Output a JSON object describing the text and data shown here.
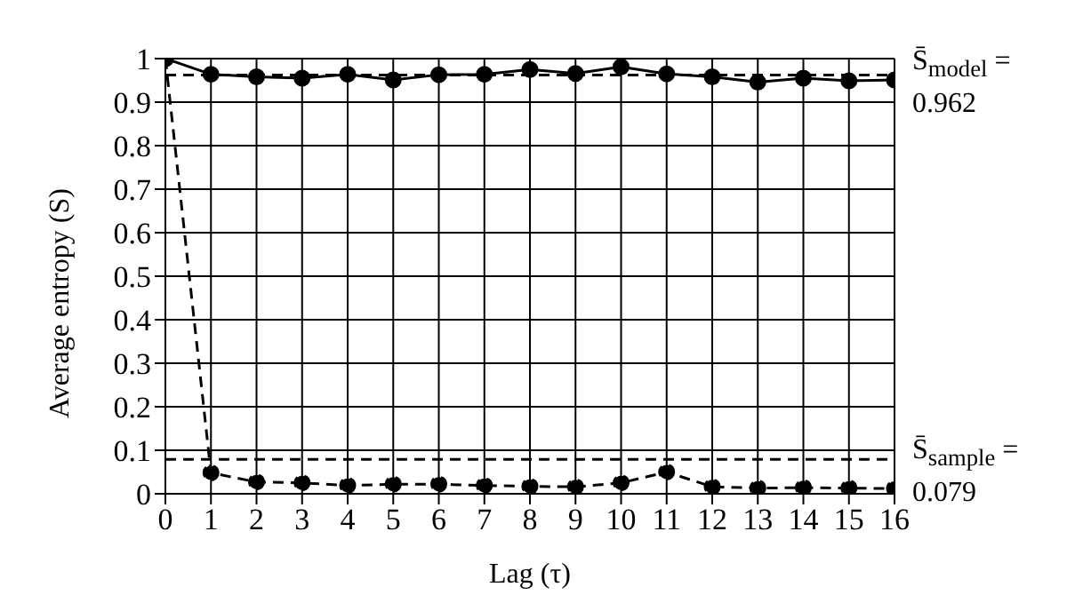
{
  "chart_data": {
    "type": "line",
    "xlabel": "Lag (τ)",
    "ylabel": "Average entropy (S)",
    "x": [
      0,
      1,
      2,
      3,
      4,
      5,
      6,
      7,
      8,
      9,
      10,
      11,
      12,
      13,
      14,
      15,
      16
    ],
    "series": [
      {
        "color": "#000000",
        "line_style": "solid",
        "values": [
          1.0,
          0.964,
          0.958,
          0.955,
          0.964,
          0.951,
          0.963,
          0.964,
          0.975,
          0.966,
          0.981,
          0.965,
          0.958,
          0.946,
          0.955,
          0.949,
          0.951
        ]
      },
      {
        "color": "#000000",
        "line_style": "dashed",
        "values": [
          1.0,
          0.048,
          0.027,
          0.025,
          0.019,
          0.022,
          0.022,
          0.019,
          0.017,
          0.016,
          0.025,
          0.05,
          0.016,
          0.013,
          0.014,
          0.013,
          0.012
        ]
      }
    ],
    "xlim": [
      0,
      16
    ],
    "xticks": [
      0,
      1,
      2,
      3,
      4,
      5,
      6,
      7,
      8,
      9,
      10,
      11,
      12,
      13,
      14,
      15,
      16
    ],
    "ylim": [
      0,
      1
    ],
    "yticks": [
      0,
      0.1,
      0.2,
      0.3,
      0.4,
      0.5,
      0.6,
      0.7,
      0.8,
      0.9,
      1
    ],
    "ref_lines": [
      {
        "axis": "y",
        "value": 0.962,
        "label": "S̄$_{model}$ = 0.962",
        "color": "#000000",
        "line_style": "dashed"
      },
      {
        "axis": "y",
        "value": 0.079,
        "label": "S̄$_{sample}$ = 0.079",
        "color": "#000000",
        "line_style": "dashed"
      }
    ],
    "grid": true,
    "marker": "circle",
    "legend": false
  }
}
